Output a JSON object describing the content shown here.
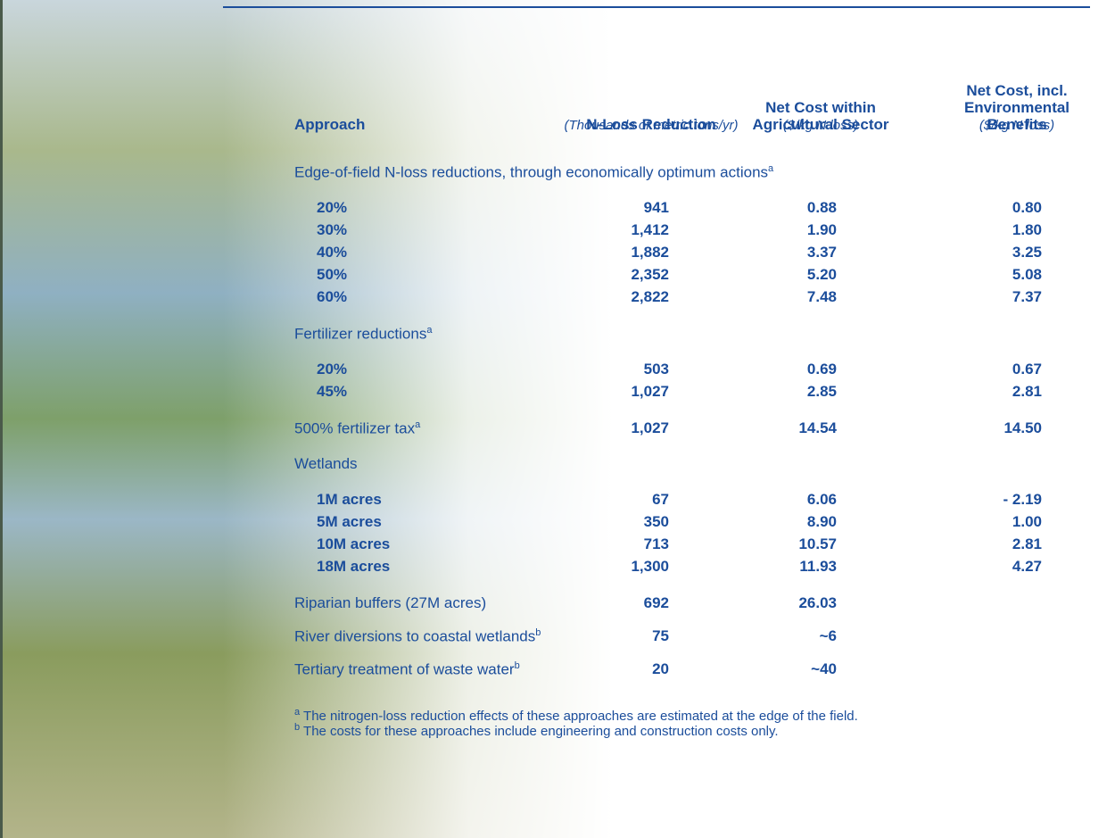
{
  "header": {
    "approach": "Approach",
    "columns": [
      {
        "title": "N-Loss Reduction",
        "unit": "(Thousands of metric tons/yr)"
      },
      {
        "title": "Net Cost within Agricultural Sector",
        "unit": "($/kg N loss)"
      },
      {
        "title": "Net Cost, incl. Environmental Benefits",
        "unit": "($/kg N loss)"
      }
    ]
  },
  "sections": [
    {
      "label": "Edge-of-field N-loss reductions, through economically optimum actions",
      "sup": "a",
      "rows": [
        {
          "label": "20%",
          "values": [
            "941",
            "0.88",
            "0.80"
          ]
        },
        {
          "label": "30%",
          "values": [
            "1,412",
            "1.90",
            "1.80"
          ]
        },
        {
          "label": "40%",
          "values": [
            "1,882",
            "3.37",
            "3.25"
          ]
        },
        {
          "label": "50%",
          "values": [
            "2,352",
            "5.20",
            "5.08"
          ]
        },
        {
          "label": "60%",
          "values": [
            "2,822",
            "7.48",
            "7.37"
          ]
        }
      ]
    },
    {
      "label": "Fertilizer reductions",
      "sup": "a",
      "rows": [
        {
          "label": "20%",
          "values": [
            "503",
            "0.69",
            "0.67"
          ]
        },
        {
          "label": "45%",
          "values": [
            "1,027",
            "2.85",
            "2.81"
          ]
        }
      ]
    },
    {
      "label": "500% fertilizer tax",
      "sup": "a",
      "values": [
        "1,027",
        "14.54",
        "14.50"
      ]
    },
    {
      "label": "Wetlands",
      "rows": [
        {
          "label": "1M acres",
          "values": [
            "67",
            "6.06",
            "- 2.19"
          ]
        },
        {
          "label": "5M acres",
          "values": [
            "350",
            "8.90",
            "1.00"
          ]
        },
        {
          "label": "10M acres",
          "values": [
            "713",
            "10.57",
            "2.81"
          ]
        },
        {
          "label": "18M acres",
          "values": [
            "1,300",
            "11.93",
            "4.27"
          ]
        }
      ]
    },
    {
      "label": "Riparian buffers (27M acres)",
      "values": [
        "692",
        "26.03"
      ]
    },
    {
      "label": "River diversions to coastal wetlands",
      "sup": "b",
      "values": [
        "75",
        "~6"
      ]
    },
    {
      "label": "Tertiary treatment of waste water",
      "sup": "b",
      "values": [
        "20",
        "~40"
      ]
    }
  ],
  "footnotes": [
    {
      "mark": "a",
      "text": "The nitrogen-loss reduction effects of these approaches are estimated at the edge of the field."
    },
    {
      "mark": "b",
      "text": "The costs for these approaches include engineering and construction costs only."
    }
  ]
}
